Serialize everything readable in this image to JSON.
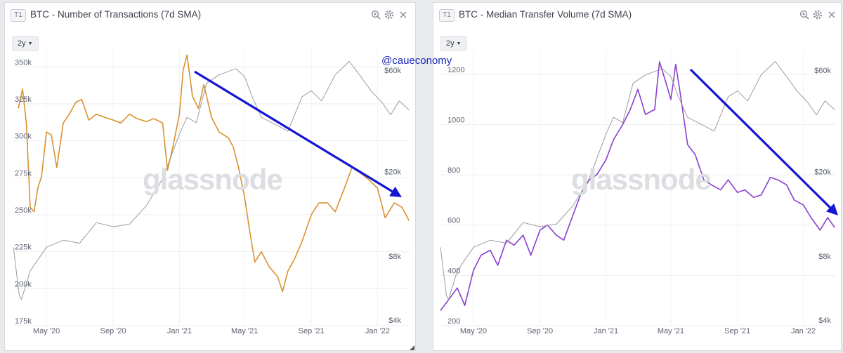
{
  "panels": [
    {
      "badge": "T1",
      "title": "BTC - Number of Transactions (7d SMA)",
      "range_label": "2y",
      "icons": [
        "zoom-icon",
        "settings-icon",
        "close-icon"
      ]
    },
    {
      "badge": "T1",
      "title": "BTC - Median Transfer Volume (7d SMA)",
      "range_label": "2y",
      "icons": [
        "zoom-icon",
        "settings-icon",
        "close-icon"
      ]
    }
  ],
  "credit": "@caueconomy",
  "watermark": "glassnode",
  "colors": {
    "transactions": "#d8922f",
    "transfer_volume": "#8a3fd1",
    "price": "#9c9c9c",
    "arrow": "#1414d4"
  },
  "chart_data": [
    {
      "type": "line",
      "title": "BTC - Number of Transactions (7d SMA)",
      "x_tick_labels": [
        "May '20",
        "Sep '20",
        "Jan '21",
        "May '21",
        "Sep '21",
        "Jan '22"
      ],
      "x_range": [
        "2020-03",
        "2022-03"
      ],
      "y_left": {
        "ticks": [
          "175k",
          "200k",
          "225k",
          "250k",
          "275k",
          "300k",
          "325k",
          "350k"
        ],
        "range": [
          175000,
          362000
        ]
      },
      "y_right": {
        "ticks": [
          "$4k",
          "$8k",
          "$20k",
          "$60k"
        ],
        "scale": "log"
      },
      "grid": true,
      "series": [
        {
          "axis": "left",
          "color": "#d8922f",
          "x": [
            "2020-03-10",
            "2020-03-18",
            "2020-03-25",
            "2020-04-01",
            "2020-04-08",
            "2020-04-15",
            "2020-04-22",
            "2020-05-01",
            "2020-05-10",
            "2020-05-20",
            "2020-06-01",
            "2020-06-12",
            "2020-06-24",
            "2020-07-05",
            "2020-07-18",
            "2020-08-01",
            "2020-08-15",
            "2020-09-01",
            "2020-09-15",
            "2020-10-01",
            "2020-10-15",
            "2020-11-01",
            "2020-11-15",
            "2020-12-01",
            "2020-12-10",
            "2020-12-20",
            "2021-01-01",
            "2021-01-08",
            "2021-01-15",
            "2021-01-25",
            "2021-02-05",
            "2021-02-15",
            "2021-03-01",
            "2021-03-15",
            "2021-04-01",
            "2021-04-10",
            "2021-04-20",
            "2021-05-01",
            "2021-05-10",
            "2021-05-20",
            "2021-06-01",
            "2021-06-15",
            "2021-07-01",
            "2021-07-10",
            "2021-07-20",
            "2021-08-01",
            "2021-08-15",
            "2021-09-01",
            "2021-09-15",
            "2021-10-01",
            "2021-10-15",
            "2021-11-01",
            "2021-11-15",
            "2021-12-01",
            "2021-12-15",
            "2022-01-01",
            "2022-01-15",
            "2022-02-01",
            "2022-02-15",
            "2022-02-28"
          ],
          "values": [
            322000,
            335000,
            312000,
            255000,
            252000,
            268000,
            276000,
            306000,
            304000,
            282000,
            312000,
            318000,
            326000,
            328000,
            314000,
            318000,
            316000,
            314000,
            312000,
            318000,
            315000,
            313000,
            315000,
            312000,
            280000,
            296000,
            318000,
            348000,
            358000,
            330000,
            322000,
            338000,
            316000,
            306000,
            302000,
            296000,
            282000,
            262000,
            240000,
            218000,
            225000,
            215000,
            208000,
            198000,
            212000,
            220000,
            232000,
            250000,
            258000,
            258000,
            252000,
            268000,
            282000,
            278000,
            274000,
            268000,
            248000,
            258000,
            255000,
            246000
          ]
        },
        {
          "axis": "right",
          "color": "#9c9c9c",
          "x": [
            "2020-03-01",
            "2020-03-12",
            "2020-03-16",
            "2020-04-01",
            "2020-05-01",
            "2020-06-01",
            "2020-07-01",
            "2020-08-01",
            "2020-09-01",
            "2020-10-01",
            "2020-11-01",
            "2020-12-01",
            "2021-01-01",
            "2021-01-15",
            "2021-02-01",
            "2021-02-20",
            "2021-03-15",
            "2021-04-15",
            "2021-05-01",
            "2021-05-15",
            "2021-06-01",
            "2021-06-20",
            "2021-07-20",
            "2021-08-15",
            "2021-09-01",
            "2021-09-20",
            "2021-10-15",
            "2021-11-10",
            "2021-12-01",
            "2021-12-20",
            "2022-01-10",
            "2022-01-25",
            "2022-02-10",
            "2022-02-28"
          ],
          "values": [
            8800,
            5200,
            5000,
            6800,
            8800,
            9500,
            9200,
            11500,
            11000,
            11300,
            13800,
            18500,
            30000,
            36000,
            34000,
            52000,
            57000,
            61000,
            56000,
            45000,
            36000,
            34000,
            31000,
            45000,
            48000,
            43000,
            57000,
            66000,
            56000,
            48000,
            42000,
            37000,
            43000,
            39000
          ]
        }
      ],
      "annotation": "downward trend arrow from Feb 2021 to end of period"
    },
    {
      "type": "line",
      "title": "BTC - Median Transfer Volume (7d SMA)",
      "x_tick_labels": [
        "May '20",
        "Sep '20",
        "Jan '21",
        "May '21",
        "Sep '21",
        "Jan '22"
      ],
      "x_range": [
        "2020-03",
        "2022-03"
      ],
      "y_left": {
        "ticks": [
          "200",
          "400",
          "600",
          "800",
          "1000",
          "1200"
        ],
        "range": [
          200,
          1300
        ]
      },
      "y_right": {
        "ticks": [
          "$4k",
          "$8k",
          "$20k",
          "$60k"
        ],
        "scale": "log"
      },
      "grid": true,
      "series": [
        {
          "axis": "left",
          "color": "#8a3fd1",
          "x": [
            "2020-03-01",
            "2020-03-15",
            "2020-04-01",
            "2020-04-15",
            "2020-05-01",
            "2020-05-15",
            "2020-06-01",
            "2020-06-15",
            "2020-07-01",
            "2020-07-15",
            "2020-08-01",
            "2020-08-15",
            "2020-09-01",
            "2020-09-15",
            "2020-10-01",
            "2020-10-15",
            "2020-11-01",
            "2020-11-15",
            "2020-12-01",
            "2020-12-15",
            "2021-01-01",
            "2021-01-15",
            "2021-02-01",
            "2021-02-15",
            "2021-03-01",
            "2021-03-15",
            "2021-04-01",
            "2021-04-10",
            "2021-04-20",
            "2021-05-01",
            "2021-05-10",
            "2021-05-20",
            "2021-06-01",
            "2021-06-15",
            "2021-07-01",
            "2021-07-15",
            "2021-08-01",
            "2021-08-15",
            "2021-09-01",
            "2021-09-15",
            "2021-10-01",
            "2021-10-15",
            "2021-11-01",
            "2021-11-15",
            "2021-12-01",
            "2021-12-15",
            "2022-01-01",
            "2022-01-15",
            "2022-02-01",
            "2022-02-15",
            "2022-02-28"
          ],
          "values": [
            260,
            300,
            350,
            280,
            420,
            480,
            500,
            440,
            540,
            520,
            560,
            480,
            580,
            600,
            560,
            540,
            640,
            720,
            780,
            800,
            860,
            940,
            1000,
            1060,
            1140,
            1040,
            1060,
            1250,
            1180,
            1100,
            1240,
            1100,
            920,
            880,
            780,
            760,
            740,
            780,
            730,
            740,
            710,
            720,
            790,
            780,
            760,
            700,
            680,
            630,
            580,
            630,
            590
          ]
        },
        {
          "axis": "right",
          "color": "#9c9c9c",
          "x": [
            "2020-03-01",
            "2020-03-12",
            "2020-03-16",
            "2020-04-01",
            "2020-05-01",
            "2020-06-01",
            "2020-07-01",
            "2020-08-01",
            "2020-09-01",
            "2020-10-01",
            "2020-11-01",
            "2020-12-01",
            "2021-01-01",
            "2021-01-15",
            "2021-02-01",
            "2021-02-20",
            "2021-03-15",
            "2021-04-15",
            "2021-05-01",
            "2021-05-15",
            "2021-06-01",
            "2021-06-20",
            "2021-07-20",
            "2021-08-15",
            "2021-09-01",
            "2021-09-20",
            "2021-10-15",
            "2021-11-10",
            "2021-12-01",
            "2021-12-20",
            "2022-01-10",
            "2022-01-25",
            "2022-02-10",
            "2022-02-28"
          ],
          "values": [
            8800,
            5200,
            5000,
            6800,
            8800,
            9500,
            9200,
            11500,
            11000,
            11300,
            13800,
            18500,
            30000,
            36000,
            34000,
            52000,
            57000,
            61000,
            56000,
            45000,
            36000,
            34000,
            31000,
            45000,
            48000,
            43000,
            57000,
            66000,
            56000,
            48000,
            42000,
            37000,
            43000,
            39000
          ]
        }
      ],
      "annotation": "downward trend arrow from May 2021 to end of period"
    }
  ]
}
